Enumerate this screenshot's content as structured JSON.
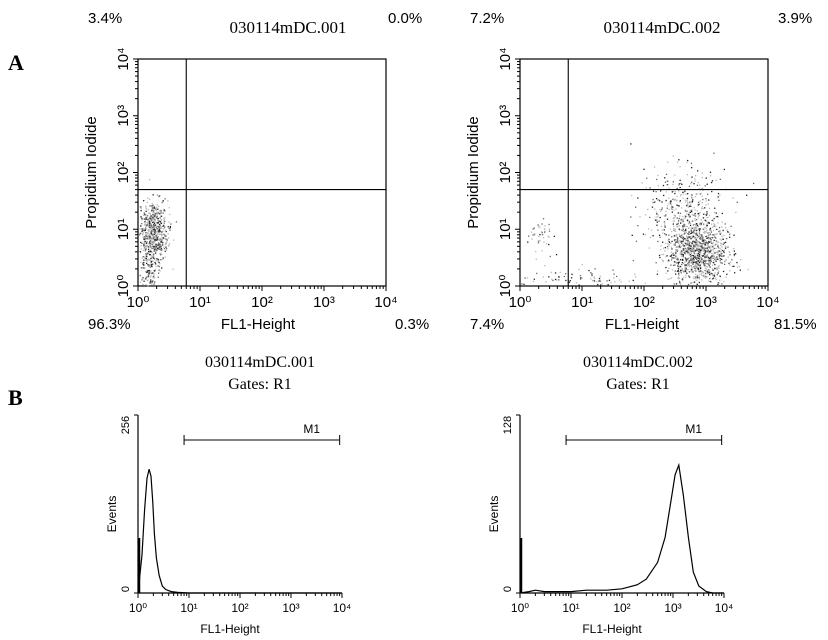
{
  "panel_labels": {
    "a": "A",
    "b": "B"
  },
  "chart_data": [
    {
      "type": "scatter",
      "title": "030114mDC.001",
      "xlabel": "FL1-Height",
      "ylabel": "Propidium Iodide",
      "xscale": "log",
      "yscale": "log",
      "xlim": [
        1,
        10000
      ],
      "ylim": [
        1,
        10000
      ],
      "x_ticks": [
        "10⁰",
        "10¹",
        "10²",
        "10³",
        "10⁴"
      ],
      "y_ticks": [
        "10⁰",
        "10¹",
        "10²",
        "10³",
        "10⁴"
      ],
      "quadrant_gates": {
        "x": 6,
        "y": 50
      },
      "quadrant_percentages": {
        "upper_left": "3.4%",
        "upper_right": "0.0%",
        "lower_left": "96.3%",
        "lower_right": "0.3%"
      },
      "clusters": [
        {
          "x_center": 1.7,
          "y_center": 8,
          "x_spread_decades": 0.12,
          "y_spread_decades": 0.3,
          "points": 700
        },
        {
          "x_center": 1.5,
          "y_center": 1.5,
          "x_spread_decades": 0.07,
          "y_spread_decades": 0.2,
          "points": 90
        }
      ]
    },
    {
      "type": "scatter",
      "title": "030114mDC.002",
      "xlabel": "FL1-Height",
      "ylabel": "Propidium Iodide",
      "xscale": "log",
      "yscale": "log",
      "xlim": [
        1,
        10000
      ],
      "ylim": [
        1,
        10000
      ],
      "x_ticks": [
        "10⁰",
        "10¹",
        "10²",
        "10³",
        "10⁴"
      ],
      "y_ticks": [
        "10⁰",
        "10¹",
        "10²",
        "10³",
        "10⁴"
      ],
      "quadrant_gates": {
        "x": 6,
        "y": 50
      },
      "quadrant_percentages": {
        "upper_left": "7.2%",
        "upper_right": "3.9%",
        "lower_left": "7.4%",
        "lower_right": "81.5%"
      },
      "clusters": [
        {
          "x_center": 700,
          "y_center": 4,
          "x_spread_decades": 0.25,
          "y_spread_decades": 0.3,
          "points": 1100
        },
        {
          "x_center": 400,
          "y_center": 25,
          "x_spread_decades": 0.35,
          "y_spread_decades": 0.35,
          "points": 350
        },
        {
          "x_center": 2,
          "y_center": 8,
          "x_spread_decades": 0.12,
          "y_spread_decades": 0.15,
          "points": 45
        },
        {
          "x_center": 8,
          "y_center": 1.3,
          "x_spread_decades": 0.5,
          "y_spread_decades": 0.1,
          "points": 90
        }
      ]
    },
    {
      "type": "line",
      "title": "030114mDC.001",
      "subtitle": "Gates: R1",
      "xlabel": "FL1-Height",
      "ylabel": "Events",
      "xscale": "log",
      "xlim": [
        1,
        10000
      ],
      "ylim": [
        0,
        256
      ],
      "y_ticks": [
        "0",
        "256"
      ],
      "x_ticks": [
        "10⁰",
        "10¹",
        "10²",
        "10³",
        "10⁴"
      ],
      "marker": {
        "label": "M1",
        "x_start": 8,
        "x_end": 9000
      },
      "series": [
        {
          "x": [
            1,
            1.2,
            1.35,
            1.5,
            1.65,
            1.8,
            1.95,
            2.1,
            2.3,
            2.6,
            3.0,
            3.5,
            4.5,
            6,
            10,
            100,
            1000,
            10000
          ],
          "values": [
            0,
            55,
            120,
            165,
            178,
            168,
            130,
            85,
            50,
            25,
            10,
            5,
            2,
            1,
            0,
            0,
            0,
            0
          ]
        }
      ]
    },
    {
      "type": "line",
      "title": "030114mDC.002",
      "subtitle": "Gates: R1",
      "xlabel": "FL1-Height",
      "ylabel": "Events",
      "xscale": "log",
      "xlim": [
        1,
        10000
      ],
      "ylim": [
        0,
        128
      ],
      "y_ticks": [
        "0",
        "128"
      ],
      "x_ticks": [
        "10⁰",
        "10¹",
        "10²",
        "10³",
        "10⁴"
      ],
      "marker": {
        "label": "M1",
        "x_start": 8,
        "x_end": 9000
      },
      "series": [
        {
          "x": [
            1,
            1.5,
            2,
            3,
            5,
            10,
            20,
            50,
            100,
            200,
            300,
            500,
            700,
            900,
            1100,
            1300,
            1600,
            2000,
            2500,
            3200,
            4500,
            6000,
            10000
          ],
          "values": [
            0,
            1,
            2,
            1,
            1,
            1,
            2,
            2,
            3,
            6,
            10,
            22,
            40,
            65,
            85,
            92,
            70,
            40,
            15,
            5,
            1,
            0,
            0
          ]
        }
      ]
    }
  ]
}
